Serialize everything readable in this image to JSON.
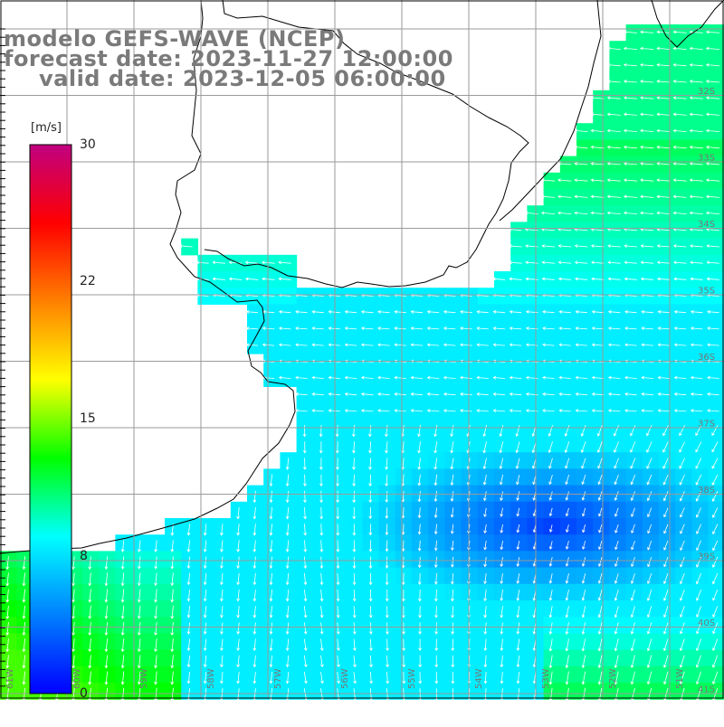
{
  "title": {
    "model": "modelo GEFS-WAVE (NCEP)",
    "forecast": "forecast date: 2023-11-27 12:00:00",
    "valid": "valid date: 2023-12-05 06:00:00"
  },
  "colorbar": {
    "unit": "[m/s]",
    "ticks": [
      "30",
      "22",
      "15",
      "8",
      "0"
    ],
    "tick_values": [
      30,
      22,
      15,
      8,
      0
    ],
    "range": [
      0,
      30
    ],
    "colors": [
      "#0000ff",
      "#0080ff",
      "#00ffff",
      "#00ff00",
      "#ffff00",
      "#ff8000",
      "#ff0000",
      "#c00080"
    ]
  },
  "map": {
    "variable": "wind speed and direction",
    "lat_labels": [
      "32S",
      "33S",
      "34S",
      "35S",
      "36S",
      "37S",
      "38S",
      "39S",
      "40S",
      "41S"
    ],
    "lon_labels": [
      "61W",
      "60W",
      "59W",
      "58W",
      "57W",
      "56W",
      "55W",
      "54W",
      "53W",
      "52W",
      "51W"
    ],
    "land_color": "#ffffff",
    "grid_color": "#9a9a9a"
  }
}
